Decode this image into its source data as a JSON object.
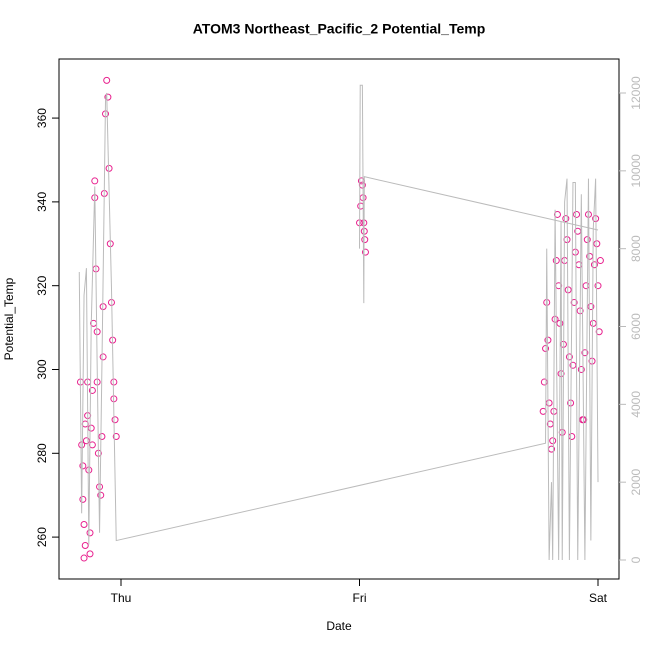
{
  "chart_data": {
    "type": "scatter",
    "title": "ATOM3 Northeast_Pacific_2 Potential_Temp",
    "x_label": "Date",
    "y_label": "Potential_Temp",
    "xlim": [
      -0.26,
      2.088
    ],
    "xticks": [
      {
        "value": 0,
        "label": "Thu"
      },
      {
        "value": 1,
        "label": "Fri"
      },
      {
        "value": 2,
        "label": "Sat"
      }
    ],
    "ylim": [
      250,
      374.1
    ],
    "yticks": [
      260,
      280,
      300,
      320,
      340,
      360
    ],
    "y2lim": [
      -488,
      12874
    ],
    "y2ticks": [
      0,
      2000,
      4000,
      6000,
      8000,
      10000,
      12000
    ],
    "series": [
      {
        "color": "#e8208e",
        "x": [
          -0.17,
          -0.165,
          -0.16,
          -0.16,
          -0.155,
          -0.155,
          -0.15,
          -0.15,
          -0.145,
          -0.14,
          -0.14,
          -0.135,
          -0.13,
          -0.13,
          -0.125,
          -0.12,
          -0.12,
          -0.115,
          -0.11,
          -0.11,
          -0.105,
          -0.1,
          -0.1,
          -0.095,
          -0.09,
          -0.085,
          -0.08,
          -0.075,
          -0.075,
          -0.07,
          -0.065,
          -0.06,
          -0.055,
          -0.05,
          -0.045,
          -0.04,
          -0.035,
          -0.03,
          -0.03,
          -0.025,
          -0.02,
          1.0,
          1.005,
          1.008,
          1.012,
          1.015,
          1.018,
          1.02,
          1.022,
          1.025,
          1.77,
          1.775,
          1.78,
          1.785,
          1.79,
          1.795,
          1.8,
          1.805,
          1.81,
          1.815,
          1.82,
          1.825,
          1.83,
          1.835,
          1.84,
          1.845,
          1.85,
          1.855,
          1.86,
          1.865,
          1.87,
          1.875,
          1.88,
          1.885,
          1.89,
          1.895,
          1.9,
          1.905,
          1.91,
          1.915,
          1.92,
          1.925,
          1.93,
          1.935,
          1.94,
          1.945,
          1.95,
          1.955,
          1.96,
          1.965,
          1.97,
          1.975,
          1.98,
          1.985,
          1.99,
          1.995,
          2.0,
          2.005,
          2.01
        ],
        "values": [
          297,
          282,
          277,
          269,
          263,
          255,
          258,
          287,
          283,
          297,
          289,
          276,
          256,
          261,
          286,
          295,
          282,
          311,
          345,
          341,
          324,
          309,
          297,
          280,
          272,
          270,
          284,
          303,
          315,
          342,
          361,
          369,
          365,
          348,
          330,
          316,
          307,
          297,
          293,
          288,
          284,
          335,
          339,
          345,
          344,
          341,
          335,
          333,
          331,
          328,
          290,
          297,
          305,
          316,
          307,
          292,
          287,
          281,
          283,
          290,
          312,
          326,
          337,
          320,
          311,
          299,
          285,
          306,
          326,
          336,
          331,
          319,
          303,
          292,
          284,
          301,
          316,
          328,
          337,
          333,
          325,
          314,
          300,
          288,
          288,
          304,
          320,
          331,
          337,
          327,
          315,
          302,
          311,
          325,
          336,
          330,
          320,
          309,
          326
        ]
      },
      {
        "color": "#bbbbbb",
        "axis": "y2",
        "x": [
          -0.175,
          -0.165,
          -0.155,
          -0.145,
          -0.135,
          -0.125,
          -0.11,
          -0.1,
          -0.09,
          -0.08,
          -0.065,
          -0.06,
          -0.05,
          -0.04,
          -0.02,
          1.78,
          1.785,
          1.795,
          1.805,
          1.81,
          1.82,
          1.835,
          1.845,
          1.85,
          1.86,
          1.87,
          1.88,
          1.895,
          1.905,
          1.915,
          1.93,
          1.945,
          1.96,
          1.97,
          1.98,
          1.99,
          2.0,
          null,
          1.0,
          1.003,
          1.012,
          1.018,
          1.02,
          2.0
        ],
        "values": [
          7400,
          1200,
          6800,
          7500,
          400,
          6000,
          9600,
          5000,
          700,
          5000,
          11800,
          12000,
          9500,
          7000,
          500,
          3000,
          8000,
          0,
          2000,
          0,
          9000,
          0,
          8700,
          0,
          9200,
          9800,
          0,
          9700,
          9700,
          0,
          9400,
          0,
          9800,
          500,
          8500,
          9800,
          2000,
          null,
          8000,
          12200,
          12200,
          6600,
          9850,
          8480
        ]
      }
    ]
  }
}
